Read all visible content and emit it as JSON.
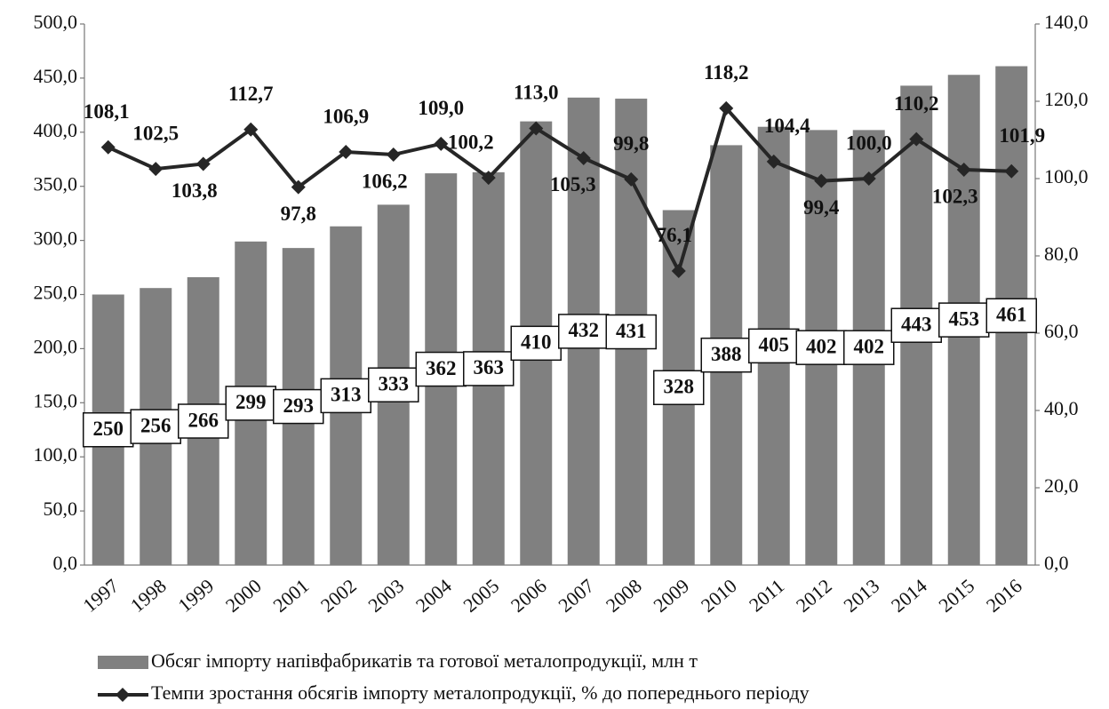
{
  "chart_data": {
    "type": "bar+line",
    "categories": [
      "1997",
      "1998",
      "1999",
      "2000",
      "2001",
      "2002",
      "2003",
      "2004",
      "2005",
      "2006",
      "2007",
      "2008",
      "2009",
      "2010",
      "2011",
      "2012",
      "2013",
      "2014",
      "2015",
      "2016"
    ],
    "series": [
      {
        "name": "Обсяг імпорту напівфабрикатів та готової металопродукції, млн т",
        "type": "bar",
        "color": "#808080",
        "values": [
          250,
          256,
          266,
          299,
          293,
          313,
          333,
          362,
          363,
          410,
          432,
          431,
          328,
          388,
          405,
          402,
          402,
          443,
          453,
          461
        ]
      },
      {
        "name": "Темпи зростання обсягів імпорту металопродукції, % до попереднього періоду",
        "type": "line",
        "axis": "y2",
        "color": "#262626",
        "values": [
          108.1,
          102.5,
          103.8,
          112.7,
          97.8,
          106.9,
          106.2,
          109.0,
          100.2,
          113.0,
          105.3,
          99.8,
          76.1,
          118.2,
          104.4,
          99.4,
          100.0,
          110.2,
          102.3,
          101.9
        ],
        "value_labels": [
          "108,1",
          "102,5",
          "103,8",
          "112,7",
          "97,8",
          "106,9",
          "106,2",
          "109,0",
          "100,2",
          "113,0",
          "105,3",
          "99,8",
          "76,1",
          "118,2",
          "104,4",
          "99,4",
          "100,0",
          "110,2",
          "102,3",
          "101,9"
        ]
      }
    ],
    "ylim": [
      0,
      500
    ],
    "yticks": [
      {
        "value": 0,
        "label": "0,0"
      },
      {
        "value": 50,
        "label": "50,0"
      },
      {
        "value": 100,
        "label": "100,0"
      },
      {
        "value": 150,
        "label": "150,0"
      },
      {
        "value": 200,
        "label": "200,0"
      },
      {
        "value": 250,
        "label": "250,0"
      },
      {
        "value": 300,
        "label": "300,0"
      },
      {
        "value": 350,
        "label": "350,0"
      },
      {
        "value": 400,
        "label": "400,0"
      },
      {
        "value": 450,
        "label": "450,0"
      },
      {
        "value": 500,
        "label": "500,0"
      }
    ],
    "y2lim": [
      0,
      140
    ],
    "y2ticks": [
      {
        "value": 0,
        "label": "0,0"
      },
      {
        "value": 20,
        "label": "20,0"
      },
      {
        "value": 40,
        "label": "40,0"
      },
      {
        "value": 60,
        "label": "60,0"
      },
      {
        "value": 80,
        "label": "80,0"
      },
      {
        "value": 100,
        "label": "100,0"
      },
      {
        "value": 120,
        "label": "120,0"
      },
      {
        "value": 140,
        "label": "140,0"
      }
    ],
    "grid": false,
    "legend": "bottom"
  }
}
